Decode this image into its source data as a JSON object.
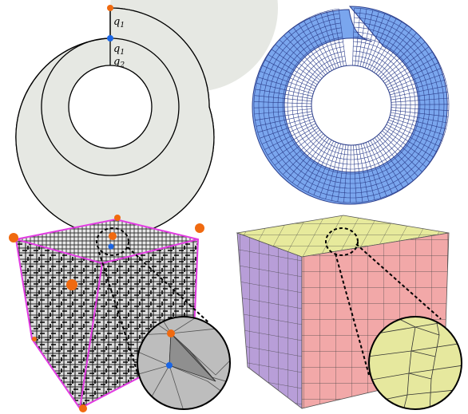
{
  "labels": {
    "q1_top": "q",
    "q1_top_sub": "1",
    "q1_mid": "q",
    "q1_mid_sub": "1",
    "q2": "q",
    "q2_sub": "2"
  },
  "colors": {
    "annulus_fill": "#e6e8e3",
    "quad_mesh_fill": "#7aa6ee",
    "quad_mesh_line": "#2d3f8c",
    "singular_orange": "#f06a10",
    "singular_blue": "#1a66e6",
    "cube_edge_magenta": "#e23be2",
    "cube_top_green": "#e6ea9a",
    "cube_front_red": "#f0a6a6",
    "cube_side_purple": "#b49ad8",
    "tet_mesh_gray": "#bdbdbd",
    "zoom_fill_green": "#e6e89e"
  }
}
